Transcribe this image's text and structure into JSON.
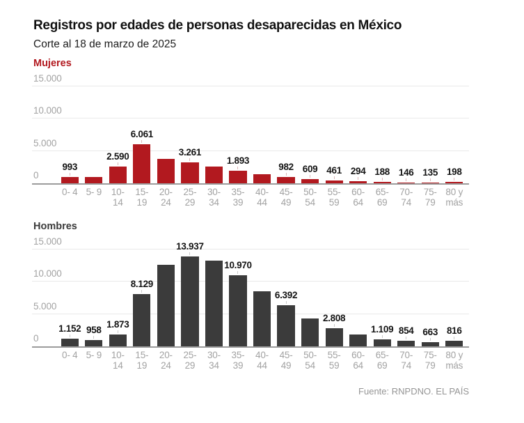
{
  "header": {
    "title": "Registros por edades de personas desaparecidas en México",
    "subtitle": "Corte al 18 de marzo de 2025"
  },
  "footer": {
    "source": "Fuente: RNPDNO. EL PAÍS"
  },
  "colors": {
    "female_red": "#b2191f",
    "male_dark": "#3b3b3b",
    "gridline": "#e9e9e9",
    "axis_line": "#9b9b9b",
    "axis_text": "#a2a2a2"
  },
  "chart_data": [
    {
      "type": "bar",
      "title": "Mujeres",
      "color": "#b2191f",
      "label_tick_color": "#dcb6b7",
      "categories": [
        [
          "0- 4"
        ],
        [
          "5- 9"
        ],
        [
          "10-",
          "14"
        ],
        [
          "15-",
          "19"
        ],
        [
          "20-",
          "24"
        ],
        [
          "25-",
          "29"
        ],
        [
          "30-",
          "34"
        ],
        [
          "35-",
          "39"
        ],
        [
          "40-",
          "44"
        ],
        [
          "45-",
          "49"
        ],
        [
          "50-",
          "54"
        ],
        [
          "55-",
          "59"
        ],
        [
          "60-",
          "64"
        ],
        [
          "65-",
          "69"
        ],
        [
          "70-",
          "74"
        ],
        [
          "75-",
          "79"
        ],
        [
          "80 y",
          "más"
        ]
      ],
      "values": [
        993,
        950,
        2590,
        6061,
        3780,
        3261,
        2600,
        1893,
        1450,
        982,
        609,
        461,
        294,
        188,
        146,
        135,
        198
      ],
      "bar_labels": [
        "993",
        null,
        "2.590",
        "6.061",
        null,
        "3.261",
        null,
        "1.893",
        null,
        "982",
        "609",
        "461",
        "294",
        "188",
        "146",
        "135",
        "198"
      ],
      "ylim": [
        0,
        15000
      ],
      "yticks": [
        {
          "label": "0",
          "value": 0
        },
        {
          "label": "5.000",
          "value": 5000
        },
        {
          "label": "10.000",
          "value": 10000
        },
        {
          "label": "15.000",
          "value": 15000
        }
      ],
      "grid": true,
      "legend": "none",
      "note": "values without bar_labels are estimated from bar heights"
    },
    {
      "type": "bar",
      "title": "Hombres",
      "color": "#3b3b3b",
      "label_tick_color": "#c9c9c9",
      "categories": [
        [
          "0- 4"
        ],
        [
          "5- 9"
        ],
        [
          "10-",
          "14"
        ],
        [
          "15-",
          "19"
        ],
        [
          "20-",
          "24"
        ],
        [
          "25-",
          "29"
        ],
        [
          "30-",
          "34"
        ],
        [
          "35-",
          "39"
        ],
        [
          "40-",
          "44"
        ],
        [
          "45-",
          "49"
        ],
        [
          "50-",
          "54"
        ],
        [
          "55-",
          "59"
        ],
        [
          "60-",
          "64"
        ],
        [
          "65-",
          "69"
        ],
        [
          "70-",
          "74"
        ],
        [
          "75-",
          "79"
        ],
        [
          "80 y",
          "más"
        ]
      ],
      "values": [
        1152,
        958,
        1873,
        8129,
        12650,
        13937,
        13250,
        10970,
        8550,
        6392,
        4300,
        2808,
        1800,
        1109,
        854,
        663,
        816
      ],
      "bar_labels": [
        "1.152",
        "958",
        "1.873",
        "8.129",
        null,
        "13.937",
        null,
        "10.970",
        null,
        "6.392",
        null,
        "2.808",
        null,
        "1.109",
        "854",
        "663",
        "816"
      ],
      "ylim": [
        0,
        15000
      ],
      "yticks": [
        {
          "label": "0",
          "value": 0
        },
        {
          "label": "5.000",
          "value": 5000
        },
        {
          "label": "10.000",
          "value": 10000
        },
        {
          "label": "15.000",
          "value": 15000
        }
      ],
      "grid": true,
      "legend": "none",
      "note": "values without bar_labels are estimated from bar heights"
    }
  ]
}
